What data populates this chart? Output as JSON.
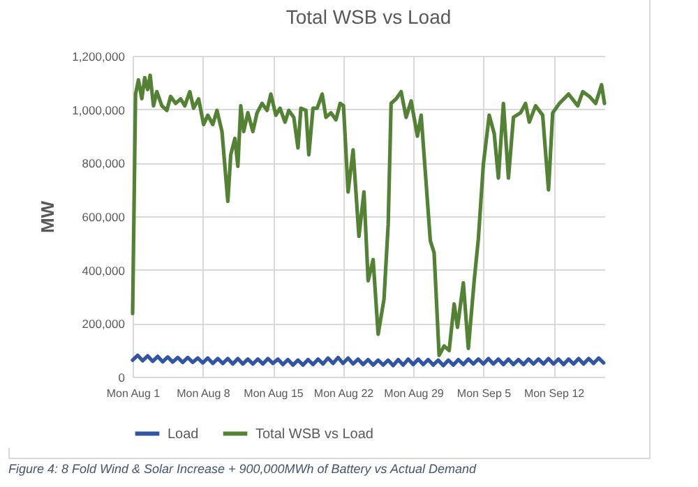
{
  "chart_data": {
    "type": "line",
    "title": "Total WSB vs Load",
    "ylabel": "MW",
    "xlim": [
      "--08-01T00:00",
      "--09-17T02:00"
    ],
    "xticks": [
      {
        "value": "--08-01",
        "label": "Mon Aug 1"
      },
      {
        "value": "--08-08",
        "label": "Mon Aug 8"
      },
      {
        "value": "--08-15",
        "label": "Mon Aug 15"
      },
      {
        "value": "--08-22",
        "label": "Mon Aug 22"
      },
      {
        "value": "--08-29",
        "label": "Mon Aug 29"
      },
      {
        "value": "--09-05",
        "label": "Mon Sep 5"
      },
      {
        "value": "--09-12",
        "label": "Mon Sep 12"
      }
    ],
    "ylim": [
      0,
      1200000
    ],
    "yticks": [
      {
        "value": 0,
        "label": "0"
      },
      {
        "value": 200000,
        "label": "200,000"
      },
      {
        "value": 400000,
        "label": "400,000"
      },
      {
        "value": 600000,
        "label": "600,000"
      },
      {
        "value": 800000,
        "label": "800,000"
      },
      {
        "value": 1000000,
        "label": "1,000,000"
      },
      {
        "value": 1200000,
        "label": "1,200,000"
      }
    ],
    "grid": true,
    "legend": "bottom",
    "annotations": [
      "Figure 4: 8 Fold Wind & Solar Increase + 900,000MWh of Battery vs Actual Demand"
    ],
    "series": [
      {
        "name": "Load",
        "color": "#2f55a4",
        "x": [
          "--08-01T00:00",
          "--08-01T12:00",
          "--08-02T00:00",
          "--08-02T12:00",
          "--08-03T00:00",
          "--08-03T12:00",
          "--08-04T00:00",
          "--08-04T12:00",
          "--08-05T00:00",
          "--08-05T12:00",
          "--08-06T00:00",
          "--08-06T12:00",
          "--08-07T00:00",
          "--08-07T12:00",
          "--08-08T00:00",
          "--08-08T12:00",
          "--08-09T00:00",
          "--08-09T12:00",
          "--08-10T00:00",
          "--08-10T12:00",
          "--08-11T00:00",
          "--08-11T12:00",
          "--08-12T00:00",
          "--08-12T12:00",
          "--08-13T00:00",
          "--08-13T12:00",
          "--08-14T00:00",
          "--08-14T12:00",
          "--08-15T00:00",
          "--08-15T12:00",
          "--08-16T00:00",
          "--08-16T12:00",
          "--08-17T00:00",
          "--08-17T12:00",
          "--08-18T00:00",
          "--08-18T12:00",
          "--08-19T00:00",
          "--08-19T12:00",
          "--08-20T00:00",
          "--08-20T12:00",
          "--08-21T00:00",
          "--08-21T12:00",
          "--08-22T00:00",
          "--08-22T12:00",
          "--08-23T00:00",
          "--08-23T12:00",
          "--08-24T00:00",
          "--08-24T12:00",
          "--08-25T00:00",
          "--08-25T12:00",
          "--08-26T00:00",
          "--08-26T12:00",
          "--08-27T00:00",
          "--08-27T12:00",
          "--08-28T00:00",
          "--08-28T12:00",
          "--08-29T00:00",
          "--08-29T12:00",
          "--08-30T00:00",
          "--08-30T12:00",
          "--08-31T00:00",
          "--08-31T12:00",
          "--09-01T00:00",
          "--09-01T12:00",
          "--09-02T00:00",
          "--09-02T12:00",
          "--09-03T00:00",
          "--09-03T12:00",
          "--09-04T00:00",
          "--09-04T12:00",
          "--09-05T00:00",
          "--09-05T12:00",
          "--09-06T00:00",
          "--09-06T12:00",
          "--09-07T00:00",
          "--09-07T12:00",
          "--09-08T00:00",
          "--09-08T12:00",
          "--09-09T00:00",
          "--09-09T12:00",
          "--09-10T00:00",
          "--09-10T12:00",
          "--09-11T00:00",
          "--09-11T12:00",
          "--09-12T00:00",
          "--09-12T12:00",
          "--09-13T00:00",
          "--09-13T12:00",
          "--09-14T00:00",
          "--09-14T12:00",
          "--09-15T00:00",
          "--09-15T12:00",
          "--09-16T00:00",
          "--09-16T12:00",
          "--09-17T00:00"
        ],
        "values": [
          62000,
          80000,
          60000,
          78000,
          58000,
          76000,
          56000,
          74000,
          55000,
          72000,
          54000,
          72000,
          54000,
          70000,
          52000,
          70000,
          50000,
          68000,
          50000,
          68000,
          48000,
          68000,
          48000,
          66000,
          48000,
          66000,
          48000,
          68000,
          50000,
          66000,
          46000,
          64000,
          44000,
          62000,
          44000,
          64000,
          46000,
          66000,
          48000,
          70000,
          50000,
          72000,
          50000,
          70000,
          48000,
          66000,
          46000,
          64000,
          44000,
          62000,
          44000,
          62000,
          42000,
          64000,
          44000,
          66000,
          46000,
          66000,
          46000,
          64000,
          44000,
          62000,
          42000,
          62000,
          44000,
          64000,
          46000,
          66000,
          48000,
          66000,
          48000,
          68000,
          48000,
          66000,
          46000,
          66000,
          46000,
          64000,
          46000,
          66000,
          48000,
          66000,
          48000,
          68000,
          48000,
          66000,
          46000,
          66000,
          48000,
          68000,
          48000,
          68000,
          50000,
          70000,
          52000
        ]
      },
      {
        "name": "Total WSB vs Load",
        "color": "#548235",
        "x": [
          "--08-01T00:00",
          "--08-01T07:00",
          "--08-01T14:00",
          "--08-01T22:00",
          "--08-02T05:00",
          "--08-02T12:00",
          "--08-02T18:00",
          "--08-03T02:00",
          "--08-03T10:00",
          "--08-03T22:00",
          "--08-04T10:00",
          "--08-04T19:00",
          "--08-05T07:00",
          "--08-05T19:00",
          "--08-06T05:00",
          "--08-06T17:00",
          "--08-07T02:00",
          "--08-07T14:00",
          "--08-08T02:00",
          "--08-08T12:00",
          "--08-09T00:00",
          "--08-09T10:00",
          "--08-09T22:00",
          "--08-10T12:00",
          "--08-10T19:00",
          "--08-11T05:00",
          "--08-11T12:00",
          "--08-11T19:00",
          "--08-12T02:00",
          "--08-12T12:00",
          "--08-13T00:00",
          "--08-13T10:00",
          "--08-13T22:00",
          "--08-14T10:00",
          "--08-14T19:00",
          "--08-15T07:00",
          "--08-15T17:00",
          "--08-16T05:00",
          "--08-16T14:00",
          "--08-17T02:00",
          "--08-17T12:00",
          "--08-17T19:00",
          "--08-18T07:00",
          "--08-18T14:00",
          "--08-19T00:00",
          "--08-19T10:00",
          "--08-19T22:00",
          "--08-20T07:00",
          "--08-20T19:00",
          "--08-21T07:00",
          "--08-21T17:00",
          "--08-22T01:00",
          "--08-22T12:00",
          "--08-23T00:00",
          "--08-23T14:00",
          "--08-24T02:00",
          "--08-24T12:00",
          "--08-25T00:00",
          "--08-25T12:00",
          "--08-26T02:00",
          "--08-26T12:00",
          "--08-26T19:00",
          "--08-27T07:00",
          "--08-27T19:00",
          "--08-28T07:00",
          "--08-28T19:00",
          "--08-29T10:00",
          "--08-29T19:00",
          "--08-30T17:00",
          "--08-31T02:00",
          "--08-31T14:00",
          "--09-01T02:00",
          "--09-01T14:00",
          "--09-02T02:00",
          "--09-02T10:00",
          "--09-03T00:00",
          "--09-03T12:00",
          "--09-04T02:00",
          "--09-04T12:00",
          "--09-05T00:00",
          "--09-05T14:00",
          "--09-06T02:00",
          "--09-06T12:00",
          "--09-07T00:00",
          "--09-07T12:00",
          "--09-08T00:00",
          "--09-08T17:00",
          "--09-09T05:00",
          "--09-09T14:00",
          "--09-10T05:00",
          "--09-10T22:00",
          "--09-11T12:00",
          "--09-11T22:00",
          "--09-12T14:00",
          "--09-13T12:00",
          "--09-14T10:00",
          "--09-14T22:00",
          "--09-15T14:00",
          "--09-16T05:00",
          "--09-16T19:00",
          "--09-17T02:00"
        ],
        "values": [
          237000,
          1057000,
          1110000,
          1040000,
          1118000,
          1074000,
          1127000,
          1013000,
          1066000,
          1013000,
          996000,
          1048000,
          1022000,
          1039000,
          1013000,
          1066000,
          1004000,
          1039000,
          943000,
          978000,
          943000,
          996000,
          917000,
          656000,
          830000,
          891000,
          787000,
          1013000,
          917000,
          987000,
          917000,
          987000,
          1022000,
          996000,
          1057000,
          978000,
          1004000,
          952000,
          996000,
          970000,
          856000,
          1004000,
          996000,
          830000,
          1004000,
          1004000,
          1057000,
          970000,
          987000,
          961000,
          1022000,
          1013000,
          691000,
          848000,
          525000,
          691000,
          359000,
          438000,
          159000,
          290000,
          569000,
          1022000,
          1039000,
          1066000,
          970000,
          1031000,
          900000,
          978000,
          508000,
          464000,
          80000,
          115000,
          98000,
          272000,
          185000,
          351000,
          106000,
          359000,
          516000,
          795000,
          978000,
          909000,
          743000,
          1022000,
          743000,
          970000,
          987000,
          1022000,
          952000,
          1013000,
          978000,
          699000,
          987000,
          1022000,
          1057000,
          1013000,
          1066000,
          1048000,
          1022000,
          1092000,
          1022000
        ]
      }
    ]
  }
}
